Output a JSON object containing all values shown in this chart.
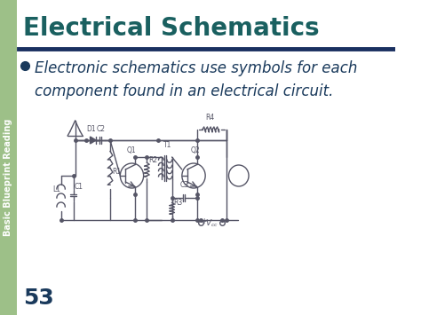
{
  "title": "Electrical Schematics",
  "title_color": "#1a6060",
  "title_fontsize": 20,
  "bullet_text": "Electronic schematics use symbols for each\ncomponent found in an electrical circuit.",
  "bullet_fontsize": 12,
  "bullet_color": "#1a3a5c",
  "sidebar_color": "#9dc088",
  "sidebar_text": "Basic Blueprint Reading",
  "sidebar_text_color": "#ffffff",
  "sidebar_fontsize": 7,
  "page_number": "53",
  "page_number_fontsize": 18,
  "page_number_color": "#1a3a5c",
  "bg_color": "#ffffff",
  "divider_color": "#1a3060",
  "circuit_line_color": "#555566",
  "circuit_label_color": "#555566",
  "circuit_label_fontsize": 5.5
}
